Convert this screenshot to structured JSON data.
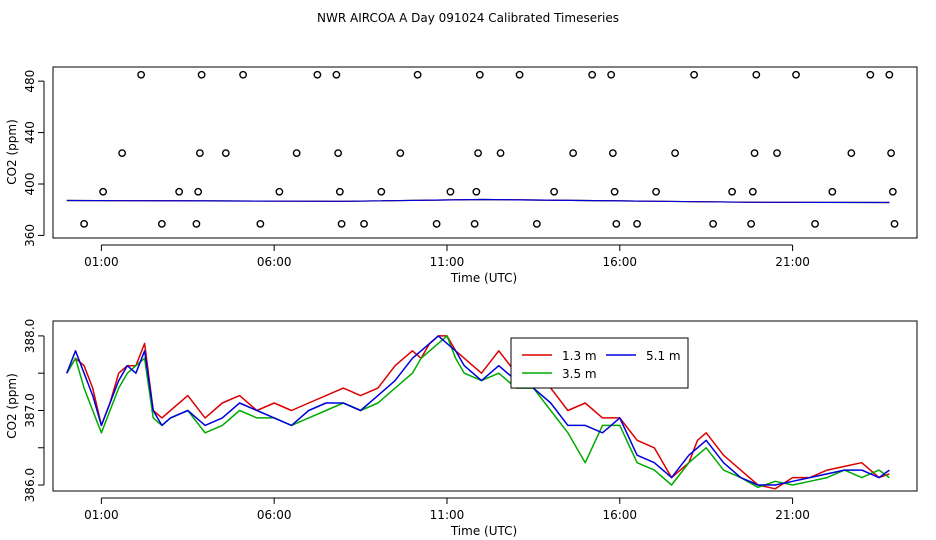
{
  "page_title": "NWR AIRCOA A  Day 091024  Calibrated Timeseries",
  "colors": {
    "series_1_3m": "#dd0000",
    "series_3_5m": "#00aa00",
    "series_5_1m": "#0000dd",
    "axes": "#000000"
  },
  "chart_data": [
    {
      "type": "scatter",
      "xlabel": "Time (UTC)",
      "ylabel": "CO2 (ppm)",
      "xlim": [
        -0.4,
        24.6
      ],
      "ylim": [
        358,
        491
      ],
      "x_ticks": [
        1,
        6,
        11,
        16,
        21
      ],
      "x_tick_labels": [
        "01:00",
        "06:00",
        "11:00",
        "16:00",
        "21:00"
      ],
      "y_ticks": [
        360,
        400,
        440,
        480
      ],
      "y_tick_labels": [
        "360",
        "400",
        "440",
        "480"
      ],
      "grid": false,
      "points": [
        {
          "x": 0.5,
          "y": 369
        },
        {
          "x": 1.05,
          "y": 394
        },
        {
          "x": 1.6,
          "y": 424
        },
        {
          "x": 2.15,
          "y": 485
        },
        {
          "x": 2.75,
          "y": 369
        },
        {
          "x": 3.25,
          "y": 394
        },
        {
          "x": 3.75,
          "y": 369
        },
        {
          "x": 3.8,
          "y": 394
        },
        {
          "x": 3.85,
          "y": 424
        },
        {
          "x": 3.9,
          "y": 485
        },
        {
          "x": 4.6,
          "y": 424
        },
        {
          "x": 5.1,
          "y": 485
        },
        {
          "x": 5.6,
          "y": 369
        },
        {
          "x": 6.15,
          "y": 394
        },
        {
          "x": 6.65,
          "y": 424
        },
        {
          "x": 7.25,
          "y": 485
        },
        {
          "x": 7.8,
          "y": 485
        },
        {
          "x": 7.85,
          "y": 424
        },
        {
          "x": 7.9,
          "y": 394
        },
        {
          "x": 7.95,
          "y": 369
        },
        {
          "x": 8.6,
          "y": 369
        },
        {
          "x": 9.1,
          "y": 394
        },
        {
          "x": 9.65,
          "y": 424
        },
        {
          "x": 10.15,
          "y": 485
        },
        {
          "x": 10.7,
          "y": 369
        },
        {
          "x": 11.1,
          "y": 394
        },
        {
          "x": 11.8,
          "y": 369
        },
        {
          "x": 11.85,
          "y": 394
        },
        {
          "x": 11.9,
          "y": 424
        },
        {
          "x": 11.95,
          "y": 485
        },
        {
          "x": 12.55,
          "y": 424
        },
        {
          "x": 13.1,
          "y": 485
        },
        {
          "x": 13.6,
          "y": 369
        },
        {
          "x": 14.1,
          "y": 394
        },
        {
          "x": 14.65,
          "y": 424
        },
        {
          "x": 15.2,
          "y": 485
        },
        {
          "x": 15.75,
          "y": 485
        },
        {
          "x": 15.8,
          "y": 424
        },
        {
          "x": 15.85,
          "y": 394
        },
        {
          "x": 15.9,
          "y": 369
        },
        {
          "x": 16.5,
          "y": 369
        },
        {
          "x": 17.05,
          "y": 394
        },
        {
          "x": 17.6,
          "y": 424
        },
        {
          "x": 18.15,
          "y": 485
        },
        {
          "x": 18.7,
          "y": 369
        },
        {
          "x": 19.25,
          "y": 394
        },
        {
          "x": 19.8,
          "y": 369
        },
        {
          "x": 19.85,
          "y": 394
        },
        {
          "x": 19.9,
          "y": 424
        },
        {
          "x": 19.95,
          "y": 485
        },
        {
          "x": 20.55,
          "y": 424
        },
        {
          "x": 21.1,
          "y": 485
        },
        {
          "x": 21.65,
          "y": 369
        },
        {
          "x": 22.15,
          "y": 394
        },
        {
          "x": 22.7,
          "y": 424
        },
        {
          "x": 23.25,
          "y": 485
        },
        {
          "x": 23.8,
          "y": 485
        },
        {
          "x": 23.85,
          "y": 424
        },
        {
          "x": 23.9,
          "y": 394
        },
        {
          "x": 23.95,
          "y": 369
        }
      ],
      "series": [
        {
          "values_x": [
            0,
            4,
            8,
            12,
            16,
            20,
            23.8
          ],
          "values": [
            387.1,
            386.9,
            386.7,
            387.6,
            386.9,
            386.2,
            386.1
          ]
        }
      ]
    },
    {
      "type": "line",
      "xlabel": "Time (UTC)",
      "ylabel": "CO2 (ppm)",
      "xlim": [
        -0.4,
        24.6
      ],
      "ylim": [
        385.92,
        388.2
      ],
      "x_ticks": [
        1,
        6,
        11,
        16,
        21
      ],
      "x_tick_labels": [
        "01:00",
        "06:00",
        "11:00",
        "16:00",
        "21:00"
      ],
      "y_ticks": [
        386.0,
        387.0,
        388.0
      ],
      "y_tick_labels": [
        "386.0",
        "387.0",
        "388.0"
      ],
      "minor_y_ticks": [
        386.5,
        387.5
      ],
      "grid": false,
      "legend": {
        "placement": "top-center",
        "entries": [
          "1.3 m",
          "5.1 m",
          "3.5 m"
        ]
      },
      "series": [
        {
          "name": "1.3 m",
          "color": "#dd0000",
          "x": [
            0,
            0.25,
            0.5,
            0.75,
            1,
            1.25,
            1.5,
            1.75,
            2,
            2.25,
            2.5,
            2.75,
            3,
            3.5,
            4,
            4.5,
            5,
            5.5,
            6,
            6.5,
            7,
            7.5,
            8,
            8.5,
            9,
            9.5,
            10,
            10.25,
            10.5,
            10.75,
            11,
            11.25,
            11.5,
            12,
            12.5,
            13,
            13.5,
            14,
            14.5,
            15,
            15.5,
            16,
            16.5,
            17,
            17.5,
            18,
            18.25,
            18.5,
            19,
            19.5,
            20,
            20.5,
            21,
            21.5,
            22,
            22.5,
            23,
            23.5,
            23.8
          ],
          "values": [
            387.5,
            387.7,
            387.6,
            387.3,
            386.8,
            387.1,
            387.5,
            387.6,
            387.6,
            387.9,
            387.0,
            386.9,
            387.0,
            387.2,
            386.9,
            387.1,
            387.2,
            387.0,
            387.1,
            387.0,
            387.1,
            387.2,
            387.3,
            387.2,
            387.3,
            387.6,
            387.8,
            387.7,
            387.9,
            388.0,
            388.0,
            387.8,
            387.7,
            387.5,
            387.8,
            387.5,
            387.4,
            387.3,
            387.0,
            387.1,
            386.9,
            386.9,
            386.6,
            386.5,
            386.1,
            386.3,
            386.6,
            386.7,
            386.4,
            386.2,
            386.0,
            385.95,
            386.1,
            386.1,
            386.2,
            386.25,
            386.3,
            386.1,
            386.15
          ]
        },
        {
          "name": "3.5 m",
          "color": "#00aa00",
          "x": [
            0,
            0.25,
            0.5,
            0.75,
            1,
            1.25,
            1.5,
            1.75,
            2,
            2.25,
            2.5,
            2.75,
            3,
            3.5,
            4,
            4.5,
            5,
            5.5,
            6,
            6.5,
            7,
            7.5,
            8,
            8.5,
            9,
            9.5,
            10,
            10.25,
            10.5,
            10.75,
            11,
            11.25,
            11.5,
            12,
            12.5,
            13,
            13.5,
            14,
            14.5,
            15,
            15.5,
            16,
            16.5,
            17,
            17.5,
            18,
            18.25,
            18.5,
            19,
            19.5,
            20,
            20.5,
            21,
            21.5,
            22,
            22.5,
            23,
            23.5,
            23.8
          ],
          "values": [
            387.5,
            387.7,
            387.3,
            387.0,
            386.7,
            387.0,
            387.3,
            387.5,
            387.6,
            387.7,
            386.9,
            386.8,
            386.9,
            387.0,
            386.7,
            386.8,
            387.0,
            386.9,
            386.9,
            386.8,
            386.9,
            387.0,
            387.1,
            387.0,
            387.1,
            387.3,
            387.5,
            387.7,
            387.8,
            387.9,
            388.0,
            387.7,
            387.5,
            387.4,
            387.5,
            387.3,
            387.3,
            387.0,
            386.7,
            386.3,
            386.8,
            386.8,
            386.3,
            386.2,
            386.0,
            386.3,
            386.4,
            386.5,
            386.2,
            386.1,
            385.97,
            386.05,
            386.0,
            386.05,
            386.1,
            386.2,
            386.1,
            386.2,
            386.1
          ]
        },
        {
          "name": "5.1 m",
          "color": "#0000dd",
          "x": [
            0,
            0.25,
            0.5,
            0.75,
            1,
            1.25,
            1.5,
            1.75,
            2,
            2.25,
            2.5,
            2.75,
            3,
            3.5,
            4,
            4.5,
            5,
            5.5,
            6,
            6.5,
            7,
            7.5,
            8,
            8.5,
            9,
            9.5,
            10,
            10.25,
            10.5,
            10.75,
            11,
            11.25,
            11.5,
            12,
            12.5,
            13,
            13.5,
            14,
            14.5,
            15,
            15.5,
            16,
            16.5,
            17,
            17.5,
            18,
            18.25,
            18.5,
            19,
            19.5,
            20,
            20.5,
            21,
            21.5,
            22,
            22.5,
            23,
            23.5,
            23.8
          ],
          "values": [
            387.5,
            387.8,
            387.5,
            387.2,
            386.8,
            387.1,
            387.4,
            387.6,
            387.5,
            387.8,
            387.0,
            386.8,
            386.9,
            387.0,
            386.8,
            386.9,
            387.1,
            387.0,
            386.9,
            386.8,
            387.0,
            387.1,
            387.1,
            387.0,
            387.2,
            387.4,
            387.7,
            387.8,
            387.9,
            388.0,
            387.9,
            387.8,
            387.6,
            387.4,
            387.6,
            387.4,
            387.3,
            387.1,
            386.8,
            386.8,
            386.7,
            386.9,
            386.4,
            386.3,
            386.1,
            386.4,
            386.5,
            386.6,
            386.3,
            386.1,
            386.0,
            386.0,
            386.05,
            386.1,
            386.15,
            386.2,
            386.2,
            386.1,
            386.2
          ]
        }
      ]
    }
  ]
}
